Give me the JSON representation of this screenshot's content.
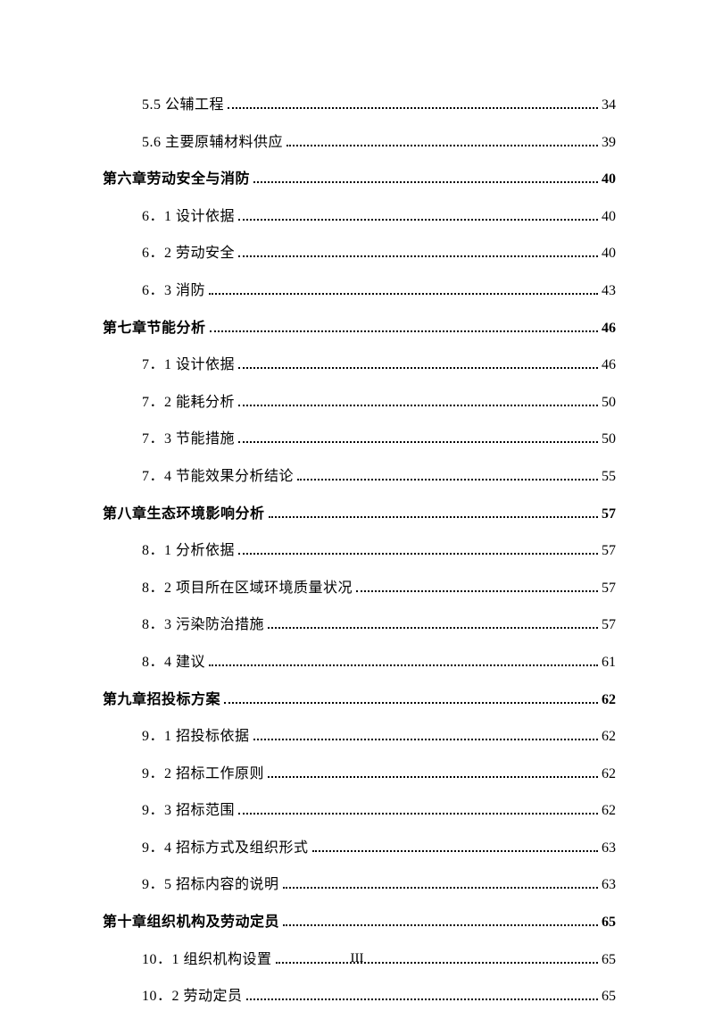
{
  "text_color": "#000000",
  "background_color": "#ffffff",
  "entries": [
    {
      "type": "sub",
      "label": "5.5 公辅工程",
      "page": "34"
    },
    {
      "type": "sub",
      "label": "5.6 主要原辅材料供应",
      "page": "39"
    },
    {
      "type": "chapter",
      "label": "第六章劳动安全与消防",
      "page": "40"
    },
    {
      "type": "sub",
      "label": "6．1 设计依据",
      "page": "40"
    },
    {
      "type": "sub",
      "label": "6．2 劳动安全",
      "page": "40"
    },
    {
      "type": "sub",
      "label": "6．3 消防",
      "page": "43"
    },
    {
      "type": "chapter",
      "label": "第七章节能分析",
      "page": "46"
    },
    {
      "type": "sub",
      "label": "7．1 设计依据",
      "page": "46"
    },
    {
      "type": "sub",
      "label": "7．2 能耗分析",
      "page": "50"
    },
    {
      "type": "sub",
      "label": "7．3 节能措施",
      "page": "50"
    },
    {
      "type": "sub",
      "label": "7．4 节能效果分析结论",
      "page": "55"
    },
    {
      "type": "chapter",
      "label": "第八章生态环境影响分析",
      "page": "57"
    },
    {
      "type": "sub",
      "label": "8．1 分析依据",
      "page": "57"
    },
    {
      "type": "sub",
      "label": "8．2 项目所在区域环境质量状况",
      "page": "57"
    },
    {
      "type": "sub",
      "label": "8．3 污染防治措施",
      "page": "57"
    },
    {
      "type": "sub",
      "label": "8．4 建议",
      "page": "61"
    },
    {
      "type": "chapter",
      "label": "第九章招投标方案",
      "page": "62"
    },
    {
      "type": "sub",
      "label": "9．1 招投标依据",
      "page": "62"
    },
    {
      "type": "sub",
      "label": "9．2 招标工作原则",
      "page": "62"
    },
    {
      "type": "sub",
      "label": "9．3 招标范围",
      "page": "62"
    },
    {
      "type": "sub",
      "label": "9．4 招标方式及组织形式",
      "page": "63"
    },
    {
      "type": "sub",
      "label": "9．5 招标内容的说明",
      "page": "63"
    },
    {
      "type": "chapter",
      "label": "第十章组织机构及劳动定员",
      "page": "65"
    },
    {
      "type": "sub",
      "label": "10．1 组织机构设置",
      "page": "65"
    },
    {
      "type": "sub",
      "label": "10．2 劳动定员",
      "page": "65"
    }
  ],
  "page_number": "III"
}
